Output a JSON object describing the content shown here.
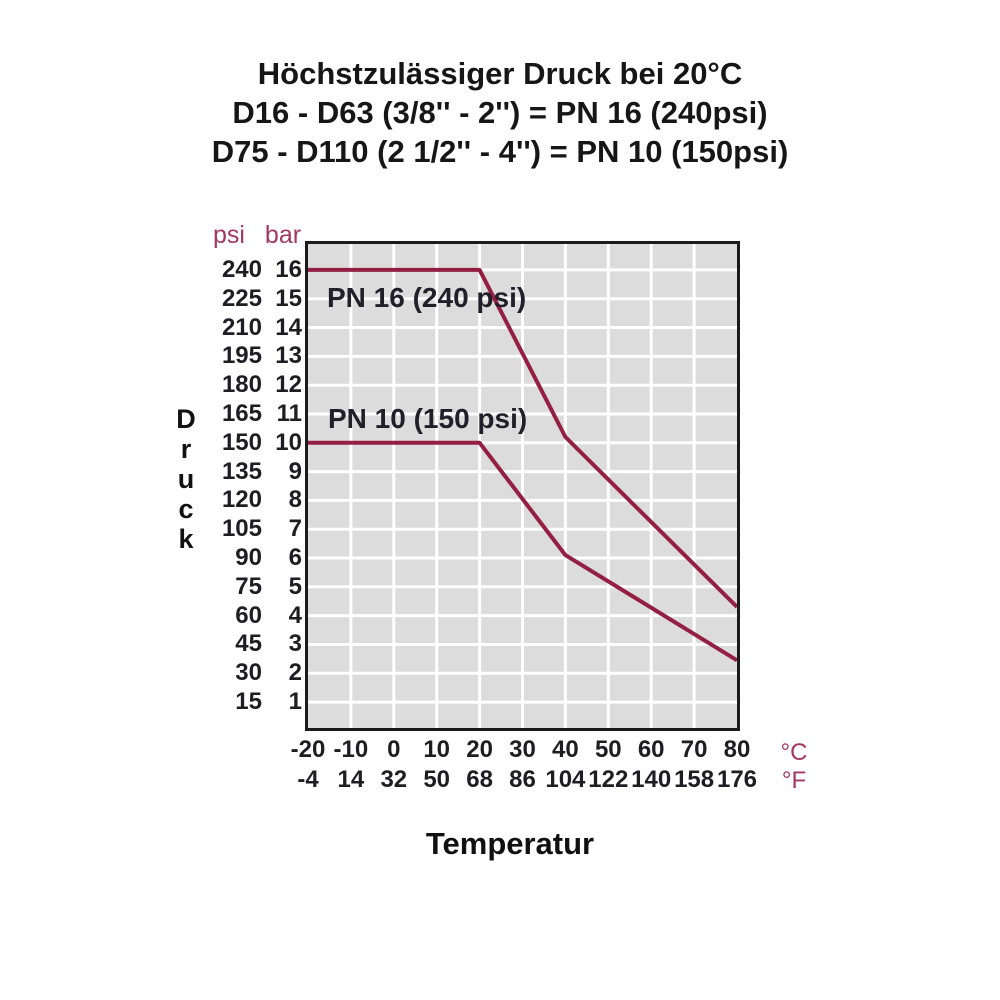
{
  "title": {
    "line1": "Höchstzulässiger Druck bei 20°C",
    "line2": "D16 - D63 (3/8'' - 2'') = PN 16 (240psi)",
    "line3": "D75 - D110 (2 1/2'' - 4'') = PN 10 (150psi)"
  },
  "chart_data": {
    "type": "line",
    "title": "Höchstzulässiger Druck bei 20°C",
    "xlabel": "Temperatur",
    "ylabel": "Druck",
    "x_units": [
      "°C",
      "°F"
    ],
    "y_units": [
      "psi",
      "bar"
    ],
    "x_ticks_celsius": [
      -20,
      -10,
      0,
      10,
      20,
      30,
      40,
      50,
      60,
      70,
      80
    ],
    "x_ticks_fahrenheit": [
      -4,
      14,
      32,
      50,
      68,
      86,
      104,
      122,
      140,
      158,
      176
    ],
    "y_ticks_psi": [
      240,
      225,
      210,
      195,
      180,
      165,
      150,
      135,
      120,
      105,
      90,
      75,
      60,
      45,
      30,
      15
    ],
    "y_ticks_bar": [
      16,
      15,
      14,
      13,
      12,
      11,
      10,
      9,
      8,
      7,
      6,
      5,
      4,
      3,
      2,
      1
    ],
    "xlim": [
      -20,
      80
    ],
    "ylim_bar": [
      0.1,
      16.9
    ],
    "grid": true,
    "series": [
      {
        "id": "pn16",
        "name": "PN 16 (240 psi)",
        "points_c_bar": [
          [
            -20,
            16
          ],
          [
            20,
            16
          ],
          [
            40,
            10.2
          ],
          [
            80,
            4.3
          ]
        ]
      },
      {
        "id": "pn10",
        "name": "PN 10 (150 psi)",
        "points_c_bar": [
          [
            -20,
            10
          ],
          [
            20,
            10
          ],
          [
            40,
            6.1
          ],
          [
            80,
            2.45
          ]
        ]
      }
    ],
    "colors": {
      "curve": "#941f45",
      "plot_background": "#dcdcdc",
      "grid": "#ffffff",
      "border": "#1b1b1b",
      "axis_text": "#1e1d24",
      "unit_text": "#a23860",
      "title_text": "#161616"
    }
  }
}
